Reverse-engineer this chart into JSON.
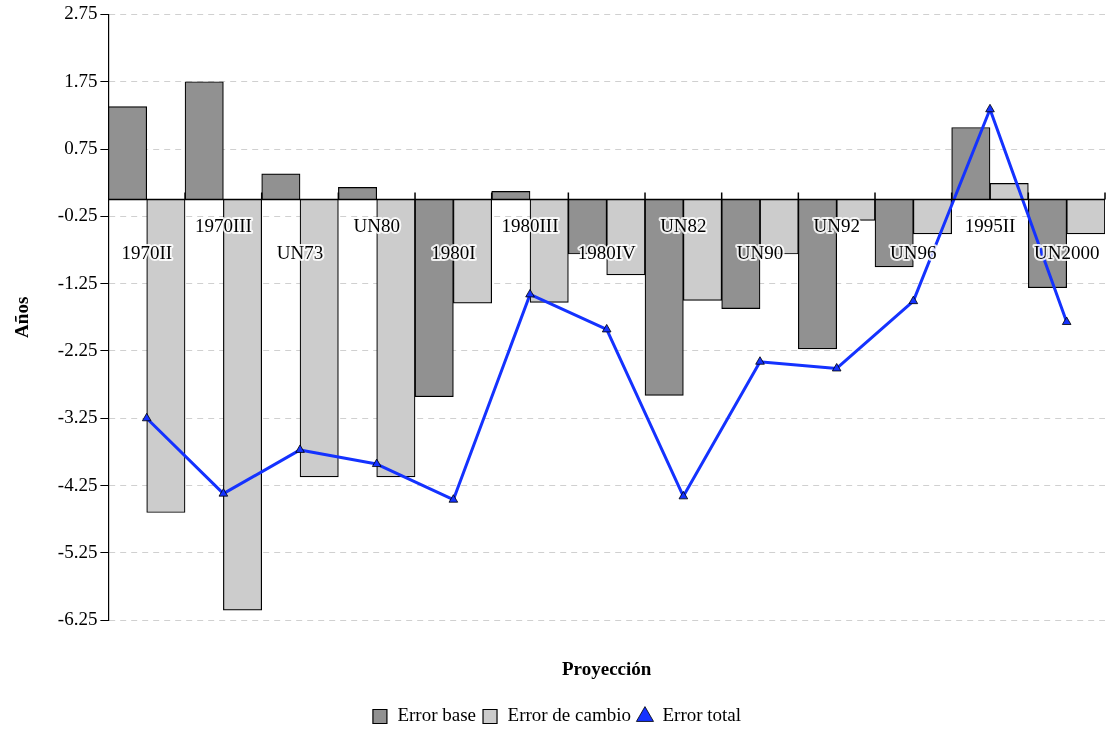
{
  "chart_data": {
    "type": "bar",
    "xlabel": "Proyección",
    "ylabel": "Años",
    "categories": [
      "1970II",
      "1970III",
      "UN73",
      "UN80",
      "1980I",
      "1980III",
      "1980IV",
      "UN82",
      "UN90",
      "UN92",
      "UN96",
      "1995II",
      "UN2000"
    ],
    "series": [
      {
        "name": "Error base",
        "color": "#919191",
        "values": [
          1.38,
          1.75,
          0.38,
          0.18,
          -2.93,
          0.12,
          -0.81,
          -2.91,
          -1.62,
          -2.22,
          -1.0,
          1.07,
          -1.31
        ]
      },
      {
        "name": "Error de cambio",
        "color": "#cccccc",
        "values": [
          -4.65,
          -6.1,
          -4.12,
          -4.12,
          -1.54,
          -1.53,
          -1.12,
          -1.5,
          -0.81,
          -0.31,
          -0.51,
          0.24,
          -0.51
        ]
      },
      {
        "name": "Error total",
        "type": "line",
        "color": "#1432ff",
        "values": [
          -3.25,
          -4.37,
          -3.72,
          -3.93,
          -4.46,
          -1.41,
          -1.93,
          -4.41,
          -2.41,
          -2.51,
          -1.51,
          1.34,
          -1.82
        ]
      }
    ],
    "marker": "triangle",
    "ylim": [
      -6.25,
      2.75
    ],
    "yticks": [
      -6.25,
      -5.25,
      -4.25,
      -3.25,
      -2.25,
      -1.25,
      -0.25,
      0.75,
      1.75,
      2.75
    ],
    "grid": "y",
    "legend": "bottom"
  }
}
